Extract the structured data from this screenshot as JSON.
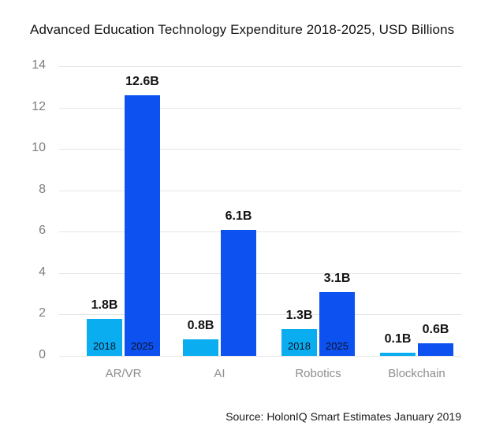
{
  "title": "Advanced Education Technology Expenditure 2018-2025, USD Billions",
  "source_note": "Source: HolonIQ Smart Estimates January 2019",
  "colors": {
    "bar_2018": "#0aadf0",
    "bar_2025": "#0d52f0",
    "gridline": "#e6e6e6",
    "tick_text": "#7f7f7f",
    "category_text": "#8e8e8e",
    "value_label_text": "#121212",
    "inside_year_text": "#0b1228",
    "title_text": "#141414",
    "background": "#ffffff"
  },
  "chart_data": {
    "type": "bar",
    "title": "Advanced Education Technology Expenditure 2018-2025, USD Billions",
    "categories": [
      "AR/VR",
      "AI",
      "Robotics",
      "Blockchain"
    ],
    "series": [
      {
        "name": "2018",
        "values": [
          1.8,
          0.8,
          1.3,
          0.1
        ],
        "value_labels": [
          "1.8B",
          "0.8B",
          "1.3B",
          "0.1B"
        ],
        "color_key": "bar_2018"
      },
      {
        "name": "2025",
        "values": [
          12.6,
          6.1,
          3.1,
          0.6
        ],
        "value_labels": [
          "12.6B",
          "6.1B",
          "3.1B",
          "0.6B"
        ],
        "color_key": "bar_2025"
      }
    ],
    "inside_year_labels_per_category": [
      true,
      false,
      true,
      false
    ],
    "y_ticks": [
      0,
      2,
      4,
      6,
      8,
      10,
      12,
      14
    ],
    "ylim": [
      0,
      14
    ],
    "xlabel": "",
    "ylabel": "",
    "grid": true,
    "legend_position": "none (years labeled inside bars)",
    "source": "Source: HolonIQ Smart Estimates January 2019"
  }
}
